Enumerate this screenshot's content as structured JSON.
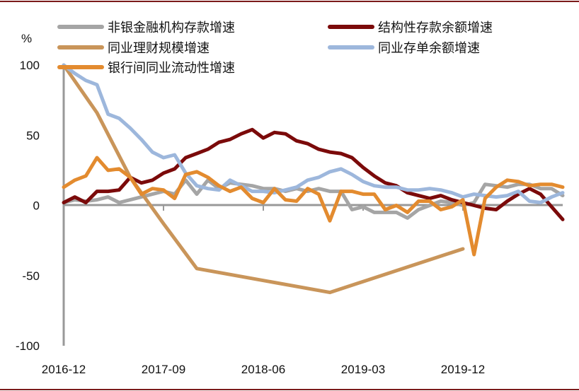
{
  "chart_data": {
    "type": "line",
    "title": "",
    "ylabel": "%",
    "xlabel": "",
    "ylim": [
      -100,
      100
    ],
    "yticks": [
      100,
      50,
      0,
      -50,
      -100
    ],
    "xlim": [
      "2016-12",
      "2020-09"
    ],
    "xticks": [
      "2016-12",
      "2017-09",
      "2018-06",
      "2019-03",
      "2019-12"
    ],
    "grid": false,
    "legend_position": "top",
    "series": [
      {
        "name": "非银金融机构存款增速",
        "color": "#A5A5A5",
        "points": [
          [
            "2016-12",
            2
          ],
          [
            "2017-01",
            4
          ],
          [
            "2017-02",
            3
          ],
          [
            "2017-03",
            4
          ],
          [
            "2017-04",
            6
          ],
          [
            "2017-05",
            2
          ],
          [
            "2017-06",
            4
          ],
          [
            "2017-07",
            6
          ],
          [
            "2017-08",
            8
          ],
          [
            "2017-09",
            10
          ],
          [
            "2017-10",
            8
          ],
          [
            "2017-11",
            18
          ],
          [
            "2017-12",
            8
          ],
          [
            "2018-01",
            18
          ],
          [
            "2018-02",
            12
          ],
          [
            "2018-03",
            16
          ],
          [
            "2018-04",
            15
          ],
          [
            "2018-05",
            14
          ],
          [
            "2018-06",
            12
          ],
          [
            "2018-07",
            12
          ],
          [
            "2018-08",
            10
          ],
          [
            "2018-09",
            12
          ],
          [
            "2018-10",
            10
          ],
          [
            "2018-11",
            12
          ],
          [
            "2018-12",
            10
          ],
          [
            "2019-01",
            10
          ],
          [
            "2019-02",
            -3
          ],
          [
            "2019-03",
            -1
          ],
          [
            "2019-04",
            -5
          ],
          [
            "2019-05",
            -5
          ],
          [
            "2019-06",
            -5
          ],
          [
            "2019-07",
            -9
          ],
          [
            "2019-08",
            -3
          ],
          [
            "2019-09",
            0
          ],
          [
            "2019-10",
            3
          ],
          [
            "2019-11",
            2
          ],
          [
            "2019-12",
            0
          ],
          [
            "2020-01",
            2
          ],
          [
            "2020-02",
            15
          ],
          [
            "2020-03",
            14
          ],
          [
            "2020-04",
            13
          ],
          [
            "2020-05",
            15
          ],
          [
            "2020-06",
            15
          ],
          [
            "2020-07",
            12
          ],
          [
            "2020-08",
            12
          ],
          [
            "2020-09",
            7
          ]
        ]
      },
      {
        "name": "结构性存款余额增速",
        "color": "#7B0A0A",
        "points": [
          [
            "2016-12",
            2
          ],
          [
            "2017-01",
            6
          ],
          [
            "2017-02",
            2
          ],
          [
            "2017-03",
            10
          ],
          [
            "2017-04",
            10
          ],
          [
            "2017-05",
            11
          ],
          [
            "2017-06",
            20
          ],
          [
            "2017-07",
            16
          ],
          [
            "2017-08",
            18
          ],
          [
            "2017-09",
            23
          ],
          [
            "2017-10",
            26
          ],
          [
            "2017-11",
            34
          ],
          [
            "2017-12",
            37
          ],
          [
            "2018-01",
            40
          ],
          [
            "2018-02",
            45
          ],
          [
            "2018-03",
            47
          ],
          [
            "2018-04",
            51
          ],
          [
            "2018-05",
            54
          ],
          [
            "2018-06",
            48
          ],
          [
            "2018-07",
            52
          ],
          [
            "2018-08",
            51
          ],
          [
            "2018-09",
            46
          ],
          [
            "2018-10",
            44
          ],
          [
            "2018-11",
            40
          ],
          [
            "2018-12",
            38
          ],
          [
            "2019-01",
            37
          ],
          [
            "2019-02",
            34
          ],
          [
            "2019-03",
            27
          ],
          [
            "2019-04",
            21
          ],
          [
            "2019-05",
            16
          ],
          [
            "2019-06",
            14
          ],
          [
            "2019-07",
            9
          ],
          [
            "2019-08",
            7
          ],
          [
            "2019-09",
            5
          ],
          [
            "2019-10",
            7
          ],
          [
            "2019-11",
            4
          ],
          [
            "2019-12",
            2
          ],
          [
            "2020-01",
            0
          ],
          [
            "2020-02",
            -2
          ],
          [
            "2020-03",
            -3
          ],
          [
            "2020-04",
            3
          ],
          [
            "2020-05",
            8
          ],
          [
            "2020-06",
            12
          ],
          [
            "2020-07",
            8
          ],
          [
            "2020-08",
            -1
          ],
          [
            "2020-09",
            -10
          ]
        ]
      },
      {
        "name": "同业理财规模增速",
        "color": "#C9955A",
        "points": [
          [
            "2016-12",
            100
          ],
          [
            "2017-03",
            66
          ],
          [
            "2017-06",
            20
          ],
          [
            "2017-09",
            -13
          ],
          [
            "2017-12",
            -45
          ],
          [
            "2018-12",
            -62
          ],
          [
            "2019-12",
            -31
          ]
        ]
      },
      {
        "name": "同业存单余额增速",
        "color": "#9DB7DC",
        "points": [
          [
            "2016-12",
            100
          ],
          [
            "2017-01",
            94
          ],
          [
            "2017-02",
            89
          ],
          [
            "2017-03",
            86
          ],
          [
            "2017-04",
            65
          ],
          [
            "2017-05",
            62
          ],
          [
            "2017-06",
            55
          ],
          [
            "2017-07",
            47
          ],
          [
            "2017-08",
            38
          ],
          [
            "2017-09",
            34
          ],
          [
            "2017-10",
            36
          ],
          [
            "2017-11",
            23
          ],
          [
            "2017-12",
            14
          ],
          [
            "2018-01",
            12
          ],
          [
            "2018-02",
            11
          ],
          [
            "2018-03",
            18
          ],
          [
            "2018-04",
            14
          ],
          [
            "2018-05",
            10
          ],
          [
            "2018-06",
            10
          ],
          [
            "2018-07",
            9
          ],
          [
            "2018-08",
            11
          ],
          [
            "2018-09",
            13
          ],
          [
            "2018-10",
            18
          ],
          [
            "2018-11",
            20
          ],
          [
            "2018-12",
            24
          ],
          [
            "2019-01",
            26
          ],
          [
            "2019-02",
            22
          ],
          [
            "2019-03",
            17
          ],
          [
            "2019-04",
            14
          ],
          [
            "2019-05",
            13
          ],
          [
            "2019-06",
            13
          ],
          [
            "2019-07",
            11
          ],
          [
            "2019-08",
            11
          ],
          [
            "2019-09",
            12
          ],
          [
            "2019-10",
            11
          ],
          [
            "2019-11",
            9
          ],
          [
            "2019-12",
            6
          ],
          [
            "2020-01",
            8
          ],
          [
            "2020-02",
            7
          ],
          [
            "2020-03",
            6
          ],
          [
            "2020-04",
            7
          ],
          [
            "2020-05",
            10
          ],
          [
            "2020-06",
            3
          ],
          [
            "2020-07",
            2
          ],
          [
            "2020-08",
            6
          ],
          [
            "2020-09",
            9
          ]
        ]
      },
      {
        "name": "银行间同业流动性增速",
        "color": "#E38B2F",
        "points": [
          [
            "2016-12",
            13
          ],
          [
            "2017-01",
            18
          ],
          [
            "2017-02",
            21
          ],
          [
            "2017-03",
            34
          ],
          [
            "2017-04",
            25
          ],
          [
            "2017-05",
            26
          ],
          [
            "2017-06",
            20
          ],
          [
            "2017-07",
            8
          ],
          [
            "2017-08",
            12
          ],
          [
            "2017-09",
            11
          ],
          [
            "2017-10",
            5
          ],
          [
            "2017-11",
            22
          ],
          [
            "2017-12",
            24
          ],
          [
            "2018-01",
            20
          ],
          [
            "2018-02",
            14
          ],
          [
            "2018-03",
            10
          ],
          [
            "2018-04",
            13
          ],
          [
            "2018-05",
            5
          ],
          [
            "2018-06",
            2
          ],
          [
            "2018-07",
            12
          ],
          [
            "2018-08",
            4
          ],
          [
            "2018-09",
            3
          ],
          [
            "2018-10",
            12
          ],
          [
            "2018-11",
            8
          ],
          [
            "2018-12",
            -11
          ],
          [
            "2019-01",
            10
          ],
          [
            "2019-02",
            10
          ],
          [
            "2019-03",
            8
          ],
          [
            "2019-04",
            8
          ],
          [
            "2019-05",
            -3
          ],
          [
            "2019-06",
            0
          ],
          [
            "2019-07",
            -5
          ],
          [
            "2019-08",
            3
          ],
          [
            "2019-09",
            3
          ],
          [
            "2019-10",
            -3
          ],
          [
            "2019-11",
            -1
          ],
          [
            "2019-12",
            4
          ],
          [
            "2020-01",
            -35
          ],
          [
            "2020-02",
            5
          ],
          [
            "2020-03",
            13
          ],
          [
            "2020-04",
            18
          ],
          [
            "2020-05",
            17
          ],
          [
            "2020-06",
            14
          ],
          [
            "2020-07",
            15
          ],
          [
            "2020-08",
            15
          ],
          [
            "2020-09",
            13
          ]
        ]
      }
    ]
  }
}
